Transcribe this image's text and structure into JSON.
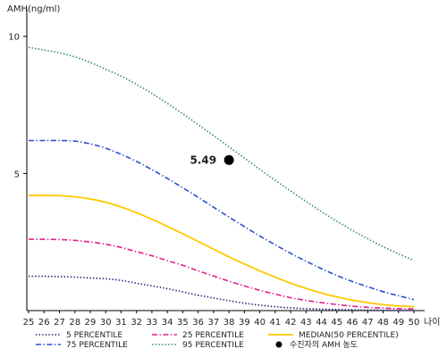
{
  "chart_data": {
    "type": "line",
    "ylabel": "AMH(ng/ml)",
    "xlabel": "나이",
    "ylim": [
      0,
      11
    ],
    "yticks": [
      5,
      10
    ],
    "x": [
      25,
      26,
      27,
      28,
      29,
      30,
      31,
      32,
      33,
      34,
      35,
      36,
      37,
      38,
      39,
      40,
      41,
      42,
      43,
      44,
      45,
      46,
      47,
      48,
      49,
      50
    ],
    "x_ticks": [
      "25",
      "26",
      "27",
      "28",
      "29",
      "30",
      "31",
      "32",
      "33",
      "34",
      "35",
      "36",
      "37",
      "38",
      "39",
      "40",
      "41",
      "42",
      "43",
      "44",
      "45",
      "46",
      "47",
      "48",
      "49",
      "50"
    ],
    "grid": false,
    "legend_position": "bottom",
    "series": [
      {
        "name": "5 PERCENTILE",
        "color": "#1a1a7a",
        "dash": "dotted",
        "values": [
          1.25,
          1.25,
          1.24,
          1.22,
          1.19,
          1.16,
          1.1,
          1.0,
          0.9,
          0.8,
          0.68,
          0.56,
          0.46,
          0.36,
          0.27,
          0.2,
          0.14,
          0.1,
          0.07,
          0.05,
          0.04,
          0.03,
          0.02,
          0.015,
          0.01,
          0.01
        ]
      },
      {
        "name": "25 PERCENTILE",
        "color": "#e0208a",
        "dash": "dashdot",
        "values": [
          2.6,
          2.6,
          2.59,
          2.56,
          2.5,
          2.42,
          2.3,
          2.15,
          2.0,
          1.82,
          1.65,
          1.45,
          1.26,
          1.07,
          0.9,
          0.74,
          0.6,
          0.47,
          0.37,
          0.29,
          0.22,
          0.16,
          0.12,
          0.09,
          0.07,
          0.06
        ]
      },
      {
        "name": "MEDIAN(50 PERCENTILE)",
        "color": "#ffc800",
        "dash": "solid",
        "values": [
          4.2,
          4.2,
          4.19,
          4.15,
          4.07,
          3.95,
          3.78,
          3.57,
          3.33,
          3.07,
          2.8,
          2.52,
          2.24,
          1.96,
          1.7,
          1.45,
          1.22,
          1.0,
          0.81,
          0.64,
          0.5,
          0.38,
          0.29,
          0.22,
          0.17,
          0.14
        ]
      },
      {
        "name": "75 PERCENTILE",
        "color": "#2a4fcf",
        "dash": "dashdot",
        "values": [
          6.2,
          6.2,
          6.2,
          6.18,
          6.08,
          5.92,
          5.7,
          5.44,
          5.14,
          4.82,
          4.48,
          4.13,
          3.77,
          3.41,
          3.06,
          2.72,
          2.4,
          2.09,
          1.8,
          1.53,
          1.28,
          1.06,
          0.87,
          0.69,
          0.54,
          0.4
        ]
      },
      {
        "name": "95 PERCENTILE",
        "color": "#2a8a4a",
        "dash": "dotted",
        "values": [
          9.6,
          9.5,
          9.4,
          9.25,
          9.05,
          8.8,
          8.55,
          8.25,
          7.92,
          7.56,
          7.18,
          6.78,
          6.38,
          5.97,
          5.56,
          5.15,
          4.75,
          4.36,
          3.98,
          3.61,
          3.26,
          2.93,
          2.62,
          2.33,
          2.07,
          1.83
        ]
      }
    ],
    "annotation": {
      "name": "수진자의 AMH 농도",
      "x": 38,
      "y": 5.49,
      "label": "5.49",
      "color": "#000000"
    },
    "legend_order": [
      "5 PERCENTILE",
      "25 PERCENTILE",
      "MEDIAN(50 PERCENTILE)",
      "75 PERCENTILE",
      "95 PERCENTILE",
      "수진자의 AMH 농도"
    ]
  }
}
